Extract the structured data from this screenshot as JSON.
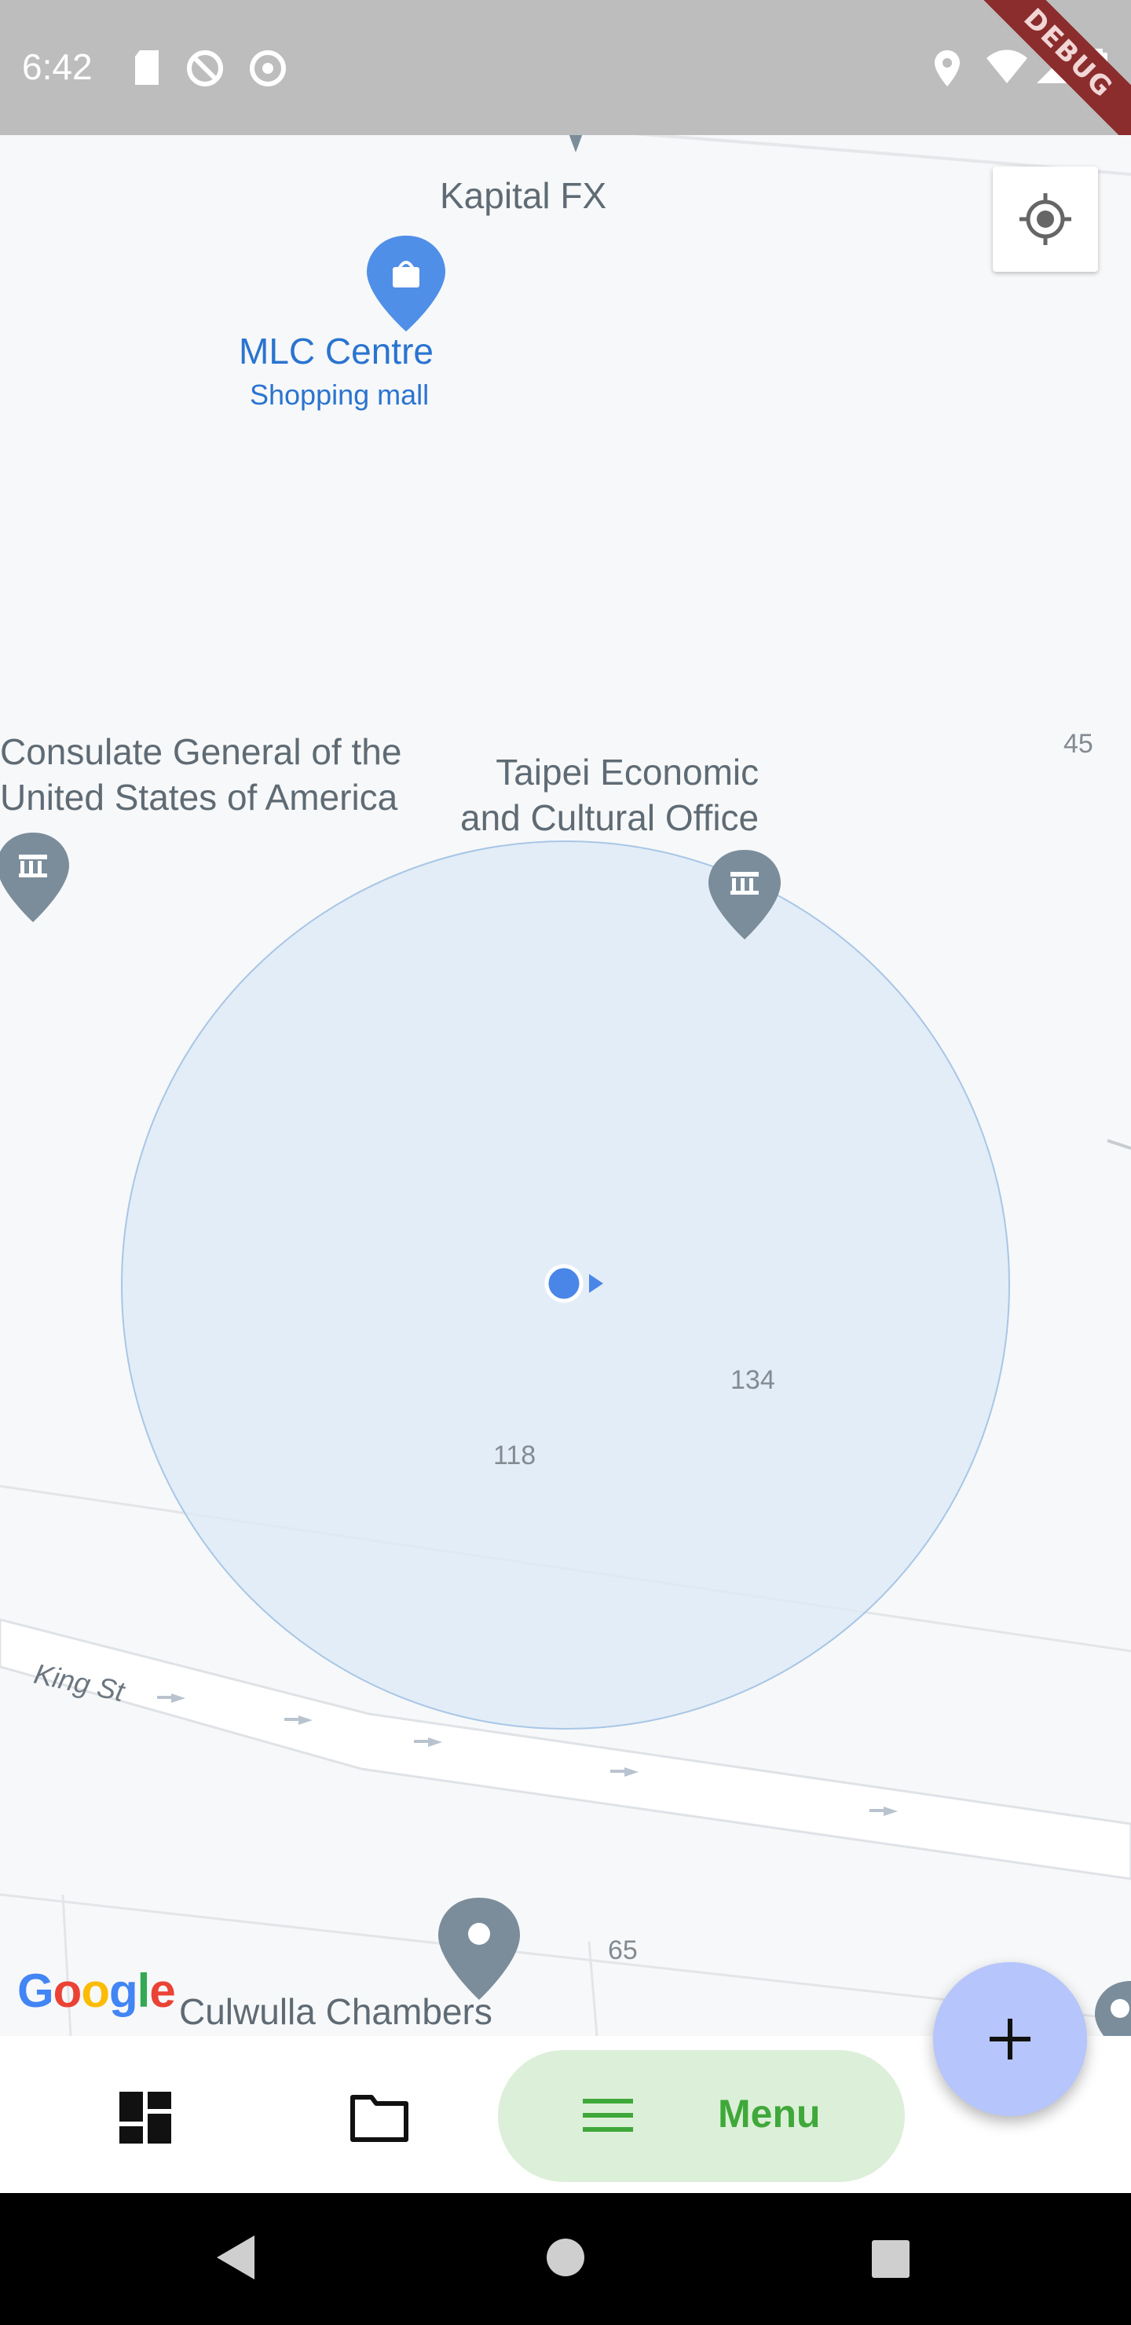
{
  "status_bar": {
    "time": "6:42",
    "left_icons": [
      "sd-card-icon",
      "do-not-disturb-icon",
      "chrome-icon"
    ],
    "right_icons": [
      "location-icon",
      "wifi-icon",
      "signal-icon",
      "battery-icon"
    ],
    "debug_banner": "DEBUG"
  },
  "map": {
    "places": [
      {
        "name": "Kapital FX"
      },
      {
        "name": "MLC Centre",
        "subtitle": "Shopping mall"
      },
      {
        "name": "Consulate General of the\nUnited States of America"
      },
      {
        "name": "Taipei Economic\nand Cultural Office"
      },
      {
        "name": "Culwulla Chambers"
      }
    ],
    "street_name": "King St",
    "building_numbers": [
      "45",
      "134",
      "118",
      "65"
    ],
    "attribution": "Google",
    "colors": {
      "accuracy_circle": "#e3edf8",
      "location_dot": "#4a86e8",
      "place_blue": "#2a74d0",
      "landmark_pin": "#7b8d9b"
    }
  },
  "controls": {
    "my_location_icon": "my-location-icon"
  },
  "bottom_nav": {
    "items": [
      {
        "icon": "dashboard-icon"
      },
      {
        "icon": "folder-icon"
      },
      {
        "icon": "menu-icon",
        "label": "Menu"
      }
    ],
    "fab_icon": "plus-icon",
    "colors": {
      "menu_pill": "#dcefd8",
      "menu_text": "#3fa83a",
      "fab": "#b6c5fb"
    }
  },
  "system_nav": {
    "icons": [
      "back-icon",
      "home-icon",
      "recents-icon"
    ]
  }
}
